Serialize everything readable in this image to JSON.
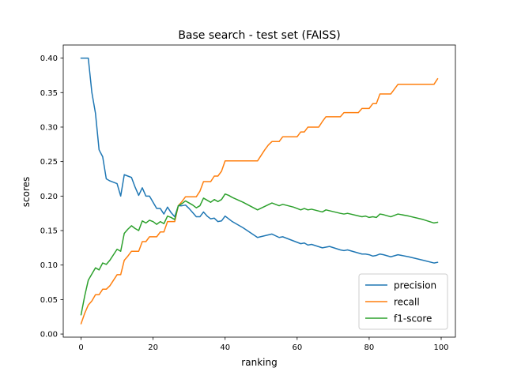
{
  "chart_data": {
    "type": "line",
    "title": "Base search - test set (FAISS)",
    "xlabel": "ranking",
    "ylabel": "scores",
    "xlim": [
      -4.95,
      103.95
    ],
    "ylim": [
      -0.0045,
      0.419
    ],
    "xticks": [
      0,
      20,
      40,
      60,
      80,
      100
    ],
    "yticks": [
      0.0,
      0.05,
      0.1,
      0.15,
      0.2,
      0.25,
      0.3,
      0.35,
      0.4
    ],
    "ytick_labels": [
      "0.00",
      "0.05",
      "0.10",
      "0.15",
      "0.20",
      "0.25",
      "0.30",
      "0.35",
      "0.40"
    ],
    "legend": "lower-right",
    "series": [
      {
        "name": "precision",
        "color": "#1f77b4",
        "points": [
          [
            0,
            0.4
          ],
          [
            1,
            0.4
          ],
          [
            2,
            0.4
          ],
          [
            3,
            0.35
          ],
          [
            4,
            0.32
          ],
          [
            5,
            0.267
          ],
          [
            6,
            0.257
          ],
          [
            7,
            0.225
          ],
          [
            8,
            0.222
          ],
          [
            9,
            0.22
          ],
          [
            10,
            0.218
          ],
          [
            11,
            0.2
          ],
          [
            12,
            0.231
          ],
          [
            13,
            0.229
          ],
          [
            14,
            0.227
          ],
          [
            15,
            0.213
          ],
          [
            16,
            0.201
          ],
          [
            17,
            0.212
          ],
          [
            18,
            0.2
          ],
          [
            19,
            0.2
          ],
          [
            20,
            0.191
          ],
          [
            21,
            0.182
          ],
          [
            22,
            0.182
          ],
          [
            23,
            0.174
          ],
          [
            24,
            0.184
          ],
          [
            25,
            0.176
          ],
          [
            26,
            0.17
          ],
          [
            27,
            0.186
          ],
          [
            28,
            0.186
          ],
          [
            29,
            0.187
          ],
          [
            30,
            0.182
          ],
          [
            31,
            0.176
          ],
          [
            32,
            0.17
          ],
          [
            33,
            0.17
          ],
          [
            34,
            0.177
          ],
          [
            35,
            0.171
          ],
          [
            36,
            0.167
          ],
          [
            37,
            0.168
          ],
          [
            38,
            0.163
          ],
          [
            39,
            0.164
          ],
          [
            40,
            0.171
          ],
          [
            41,
            0.167
          ],
          [
            42,
            0.163
          ],
          [
            45,
            0.154
          ],
          [
            49,
            0.14
          ],
          [
            53,
            0.145
          ],
          [
            55,
            0.14
          ],
          [
            56,
            0.141
          ],
          [
            59,
            0.135
          ],
          [
            61,
            0.131
          ],
          [
            62,
            0.132
          ],
          [
            63,
            0.129
          ],
          [
            64,
            0.13
          ],
          [
            67,
            0.125
          ],
          [
            69,
            0.127
          ],
          [
            72,
            0.122
          ],
          [
            73,
            0.121
          ],
          [
            74,
            0.122
          ],
          [
            78,
            0.116
          ],
          [
            79,
            0.116
          ],
          [
            80,
            0.115
          ],
          [
            81,
            0.113
          ],
          [
            82,
            0.114
          ],
          [
            83,
            0.116
          ],
          [
            84,
            0.115
          ],
          [
            86,
            0.112
          ],
          [
            88,
            0.115
          ],
          [
            91,
            0.112
          ],
          [
            95,
            0.107
          ],
          [
            98,
            0.103
          ],
          [
            99,
            0.104
          ]
        ]
      },
      {
        "name": "recall",
        "color": "#ff7f0e",
        "points": [
          [
            0,
            0.015
          ],
          [
            1,
            0.03
          ],
          [
            2,
            0.042
          ],
          [
            3,
            0.048
          ],
          [
            4,
            0.057
          ],
          [
            5,
            0.057
          ],
          [
            6,
            0.065
          ],
          [
            7,
            0.065
          ],
          [
            8,
            0.07
          ],
          [
            9,
            0.078
          ],
          [
            10,
            0.086
          ],
          [
            11,
            0.086
          ],
          [
            12,
            0.107
          ],
          [
            13,
            0.113
          ],
          [
            14,
            0.12
          ],
          [
            15,
            0.12
          ],
          [
            16,
            0.12
          ],
          [
            17,
            0.134
          ],
          [
            18,
            0.134
          ],
          [
            19,
            0.141
          ],
          [
            20,
            0.141
          ],
          [
            21,
            0.141
          ],
          [
            22,
            0.148
          ],
          [
            23,
            0.148
          ],
          [
            24,
            0.163
          ],
          [
            25,
            0.163
          ],
          [
            26,
            0.163
          ],
          [
            27,
            0.186
          ],
          [
            28,
            0.192
          ],
          [
            29,
            0.199
          ],
          [
            30,
            0.199
          ],
          [
            31,
            0.199
          ],
          [
            32,
            0.199
          ],
          [
            33,
            0.207
          ],
          [
            34,
            0.221
          ],
          [
            35,
            0.221
          ],
          [
            36,
            0.221
          ],
          [
            37,
            0.229
          ],
          [
            38,
            0.229
          ],
          [
            39,
            0.236
          ],
          [
            40,
            0.251
          ],
          [
            41,
            0.251
          ],
          [
            48,
            0.251
          ],
          [
            49,
            0.251
          ],
          [
            50,
            0.259
          ],
          [
            51,
            0.267
          ],
          [
            52,
            0.274
          ],
          [
            53,
            0.279
          ],
          [
            55,
            0.279
          ],
          [
            56,
            0.286
          ],
          [
            60,
            0.286
          ],
          [
            61,
            0.293
          ],
          [
            62,
            0.293
          ],
          [
            63,
            0.3
          ],
          [
            66,
            0.3
          ],
          [
            67,
            0.308
          ],
          [
            68,
            0.315
          ],
          [
            72,
            0.315
          ],
          [
            73,
            0.321
          ],
          [
            77,
            0.321
          ],
          [
            78,
            0.327
          ],
          [
            80,
            0.327
          ],
          [
            81,
            0.334
          ],
          [
            82,
            0.334
          ],
          [
            83,
            0.348
          ],
          [
            86,
            0.348
          ],
          [
            87,
            0.355
          ],
          [
            88,
            0.362
          ],
          [
            98,
            0.362
          ],
          [
            99,
            0.37
          ]
        ]
      },
      {
        "name": "f1-score",
        "color": "#2ca02c",
        "points": [
          [
            0,
            0.028
          ],
          [
            1,
            0.055
          ],
          [
            2,
            0.078
          ],
          [
            3,
            0.087
          ],
          [
            4,
            0.096
          ],
          [
            5,
            0.093
          ],
          [
            6,
            0.103
          ],
          [
            7,
            0.101
          ],
          [
            8,
            0.107
          ],
          [
            9,
            0.115
          ],
          [
            10,
            0.123
          ],
          [
            11,
            0.12
          ],
          [
            12,
            0.146
          ],
          [
            13,
            0.152
          ],
          [
            14,
            0.157
          ],
          [
            15,
            0.153
          ],
          [
            16,
            0.15
          ],
          [
            17,
            0.164
          ],
          [
            18,
            0.161
          ],
          [
            19,
            0.165
          ],
          [
            20,
            0.163
          ],
          [
            21,
            0.159
          ],
          [
            22,
            0.163
          ],
          [
            23,
            0.16
          ],
          [
            24,
            0.171
          ],
          [
            25,
            0.169
          ],
          [
            26,
            0.166
          ],
          [
            27,
            0.186
          ],
          [
            28,
            0.189
          ],
          [
            29,
            0.193
          ],
          [
            30,
            0.19
          ],
          [
            31,
            0.187
          ],
          [
            32,
            0.183
          ],
          [
            33,
            0.186
          ],
          [
            34,
            0.197
          ],
          [
            35,
            0.194
          ],
          [
            36,
            0.191
          ],
          [
            37,
            0.195
          ],
          [
            38,
            0.192
          ],
          [
            39,
            0.195
          ],
          [
            40,
            0.203
          ],
          [
            41,
            0.201
          ],
          [
            42,
            0.198
          ],
          [
            45,
            0.191
          ],
          [
            49,
            0.18
          ],
          [
            53,
            0.19
          ],
          [
            55,
            0.186
          ],
          [
            56,
            0.188
          ],
          [
            59,
            0.184
          ],
          [
            61,
            0.18
          ],
          [
            62,
            0.182
          ],
          [
            63,
            0.18
          ],
          [
            64,
            0.181
          ],
          [
            67,
            0.177
          ],
          [
            68,
            0.18
          ],
          [
            72,
            0.175
          ],
          [
            73,
            0.174
          ],
          [
            74,
            0.175
          ],
          [
            78,
            0.17
          ],
          [
            79,
            0.171
          ],
          [
            80,
            0.169
          ],
          [
            81,
            0.17
          ],
          [
            82,
            0.169
          ],
          [
            83,
            0.174
          ],
          [
            84,
            0.173
          ],
          [
            86,
            0.17
          ],
          [
            88,
            0.174
          ],
          [
            91,
            0.171
          ],
          [
            95,
            0.166
          ],
          [
            98,
            0.161
          ],
          [
            99,
            0.162
          ]
        ]
      }
    ]
  }
}
